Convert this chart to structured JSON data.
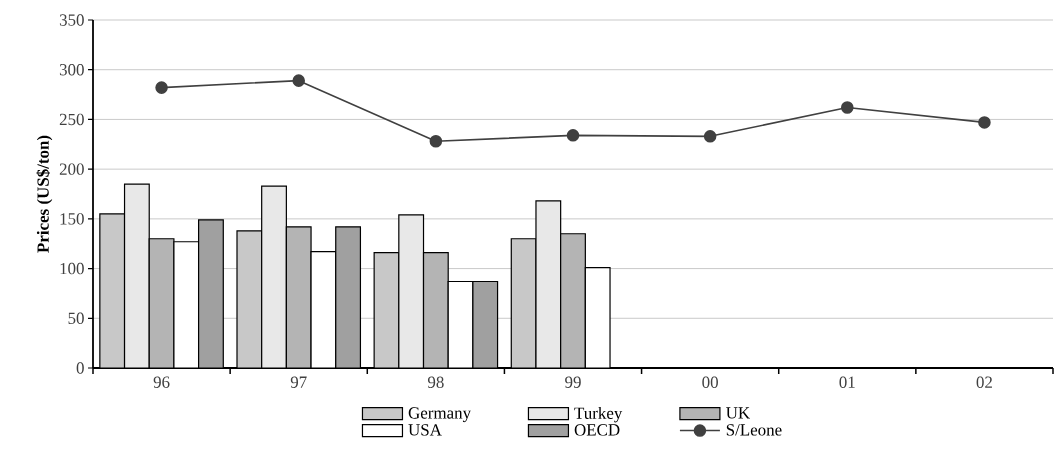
{
  "chart_data": {
    "type": "bar",
    "ylabel": "Prices (US$/ton)",
    "categories": [
      "96",
      "97",
      "98",
      "99",
      "00",
      "01",
      "02"
    ],
    "ylim": [
      0,
      350
    ],
    "yticks": [
      0,
      50,
      100,
      150,
      200,
      250,
      300,
      350
    ],
    "grid": "y",
    "legend": "bottom",
    "marker": "circle",
    "line_style": "solid",
    "series": [
      {
        "name": "Germany",
        "color": "#c8c8c8",
        "values": [
          155,
          138,
          116,
          130,
          null,
          null,
          null
        ]
      },
      {
        "name": "Turkey",
        "color": "#e8e8e8",
        "values": [
          185,
          183,
          154,
          168,
          null,
          null,
          null
        ]
      },
      {
        "name": "UK",
        "color": "#b4b4b4",
        "values": [
          130,
          142,
          116,
          135,
          null,
          null,
          null
        ]
      },
      {
        "name": "USA",
        "color": "#ffffff",
        "values": [
          127,
          117,
          87,
          101,
          null,
          null,
          null
        ]
      },
      {
        "name": "OECD",
        "color": "#a0a0a0",
        "values": [
          149,
          142,
          87,
          null,
          null,
          null,
          null
        ]
      },
      {
        "name": "S/Leone",
        "type": "line",
        "color": "#404040",
        "values": [
          282,
          289,
          228,
          234,
          233,
          262,
          247
        ]
      }
    ]
  }
}
